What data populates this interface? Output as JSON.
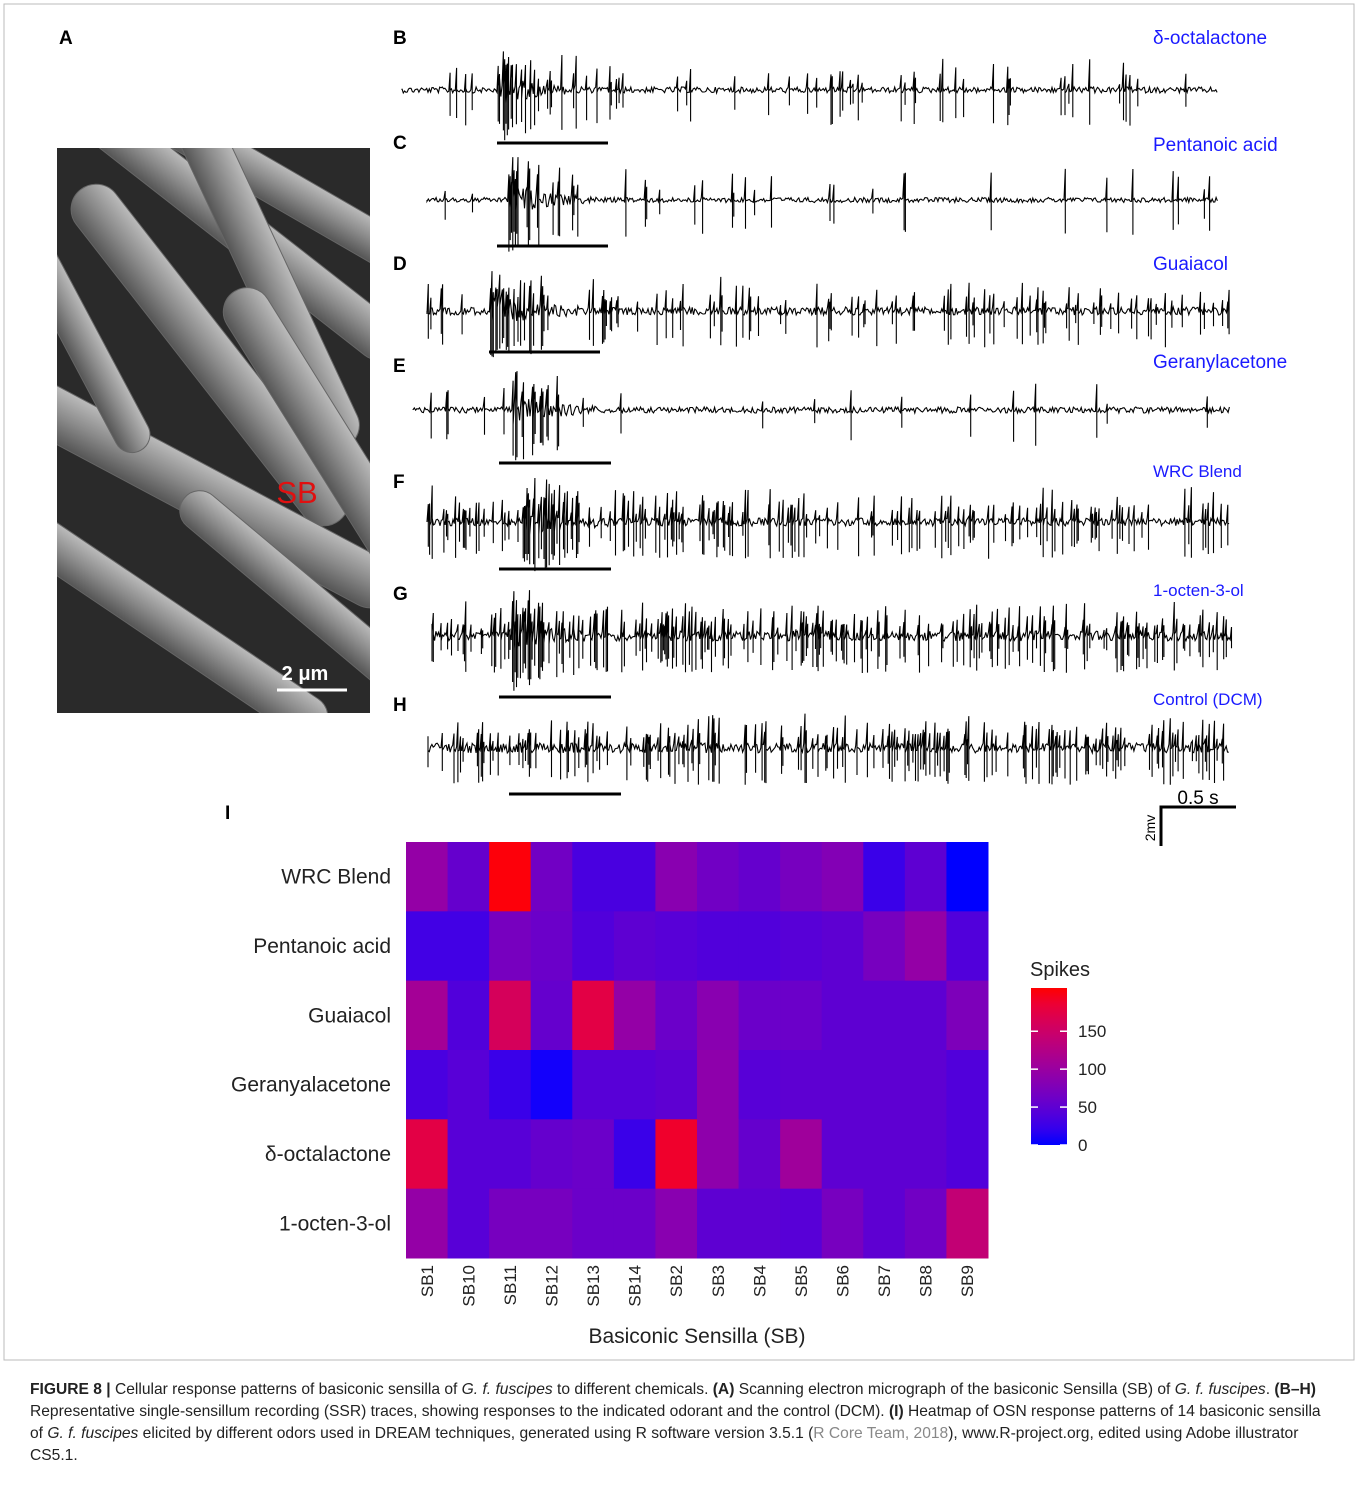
{
  "figure": {
    "panel_labels": [
      "A",
      "B",
      "C",
      "D",
      "E",
      "F",
      "G",
      "H",
      "I"
    ],
    "micrograph": {
      "label": "SB",
      "scale_bar": "2 μm"
    },
    "traces": [
      "δ-octalactone",
      "Pentanoic acid",
      "Guaiacol",
      "Geranylacetone",
      "WRC Blend",
      "1-octen-3-ol",
      "Control (DCM)"
    ],
    "time_scale": "0.5 s",
    "voltage_scale": "2mv"
  },
  "chart_data": {
    "type": "heatmap",
    "x_label": "Basiconic Sensilla (SB)",
    "categories": [
      "SB1",
      "SB10",
      "SB11",
      "SB12",
      "SB13",
      "SB14",
      "SB2",
      "SB3",
      "SB4",
      "SB5",
      "SB6",
      "SB7",
      "SB8",
      "SB9"
    ],
    "rows": [
      "WRC Blend",
      "Pentanoic acid",
      "Guaiacol",
      "Geranyalacetone",
      "δ-octalactone",
      "1-octen-3-ol"
    ],
    "values": [
      [
        95,
        55,
        205,
        65,
        35,
        35,
        85,
        65,
        55,
        70,
        80,
        25,
        50,
        0
      ],
      [
        30,
        30,
        70,
        60,
        40,
        50,
        45,
        40,
        40,
        45,
        50,
        70,
        95,
        40
      ],
      [
        110,
        40,
        160,
        55,
        175,
        95,
        60,
        85,
        60,
        60,
        50,
        50,
        50,
        75
      ],
      [
        35,
        45,
        25,
        5,
        45,
        45,
        50,
        90,
        45,
        50,
        50,
        50,
        50,
        40
      ],
      [
        175,
        45,
        45,
        55,
        60,
        25,
        190,
        90,
        55,
        105,
        50,
        50,
        50,
        40
      ],
      [
        95,
        45,
        70,
        70,
        60,
        60,
        85,
        50,
        50,
        45,
        70,
        50,
        65,
        140
      ]
    ],
    "colorbar": {
      "title": "Spikes",
      "lim": [
        0,
        207
      ],
      "ticks": [
        0,
        50,
        100,
        150
      ],
      "colors": [
        "#0000ff",
        "#ff0000"
      ]
    }
  },
  "caption": [
    "FIGURE 8 |",
    " Cellular response patterns of basiconic sensilla of ",
    "G. f. fuscipes",
    " to different chemicals. ",
    "(A)",
    " Scanning electron micrograph of the basiconic Sensilla (SB) of ",
    "G. f. fuscipes",
    ". ",
    "(B–H)",
    " Representative single-sensillum recording (SSR) traces, showing responses to the indicated odorant and the control (DCM). ",
    "(I)",
    " Heatmap of OSN response patterns of 14 basiconic sensilla of ",
    "G. f. fuscipes",
    " elicited by different odors used in DREAM techniques, generated using R software version 3.5.1 (",
    "R Core Team, 2018",
    "), www.R-project.org, edited using Adobe illustrator CS5.1."
  ]
}
